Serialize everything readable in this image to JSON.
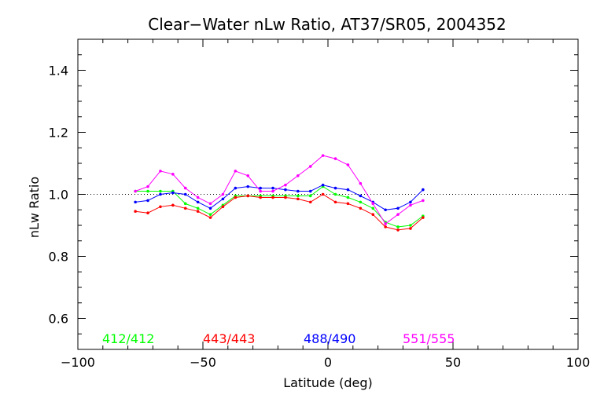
{
  "chart_data": {
    "type": "line",
    "title": "Clear−Water nLw Ratio, AT37/SR05, 2004352",
    "xlabel": "Latitude (deg)",
    "ylabel": "nLw Ratio",
    "xlim": [
      -100,
      100
    ],
    "ylim": [
      0.5,
      1.5
    ],
    "x_ticks": [
      -100,
      -50,
      0,
      50,
      100
    ],
    "x_tick_labels": [
      "−100",
      "−50",
      "0",
      "50",
      "100"
    ],
    "y_ticks": [
      0.6,
      0.8,
      1.0,
      1.2,
      1.4
    ],
    "y_tick_labels": [
      "0.6",
      "0.8",
      "1.0",
      "1.2",
      "1.4"
    ],
    "reference_line": 1.0,
    "x": [
      -77,
      -72,
      -67,
      -62,
      -57,
      -52,
      -47,
      -42,
      -37,
      -32,
      -27,
      -22,
      -17,
      -12,
      -7,
      -2,
      3,
      8,
      13,
      18,
      23,
      28,
      33,
      38
    ],
    "series": [
      {
        "name": "412/412",
        "color": "#00ff00",
        "values": [
          1.01,
          1.01,
          1.01,
          1.01,
          0.97,
          0.955,
          0.935,
          0.965,
          0.995,
          0.995,
          0.995,
          0.995,
          0.995,
          0.995,
          0.995,
          1.025,
          1.0,
          0.99,
          0.975,
          0.955,
          0.91,
          0.895,
          0.9,
          0.93
        ]
      },
      {
        "name": "443/443",
        "color": "#ff0000",
        "values": [
          0.945,
          0.94,
          0.96,
          0.965,
          0.955,
          0.945,
          0.925,
          0.96,
          0.99,
          0.995,
          0.99,
          0.99,
          0.99,
          0.985,
          0.975,
          1.0,
          0.975,
          0.97,
          0.955,
          0.935,
          0.895,
          0.885,
          0.89,
          0.925
        ]
      },
      {
        "name": "488/490",
        "color": "#0000ff",
        "values": [
          0.975,
          0.98,
          1.0,
          1.005,
          1.0,
          0.975,
          0.955,
          0.985,
          1.02,
          1.025,
          1.02,
          1.02,
          1.015,
          1.01,
          1.01,
          1.03,
          1.02,
          1.015,
          0.995,
          0.975,
          0.95,
          0.955,
          0.975,
          1.015
        ]
      },
      {
        "name": "551/555",
        "color": "#ff00ff",
        "values": [
          1.01,
          1.025,
          1.075,
          1.065,
          1.02,
          0.99,
          0.97,
          1.0,
          1.075,
          1.06,
          1.01,
          1.01,
          1.03,
          1.06,
          1.09,
          1.125,
          1.115,
          1.095,
          1.035,
          0.97,
          0.905,
          0.935,
          0.965,
          0.98
        ]
      }
    ],
    "legend_position": "bottom, inside plot"
  }
}
